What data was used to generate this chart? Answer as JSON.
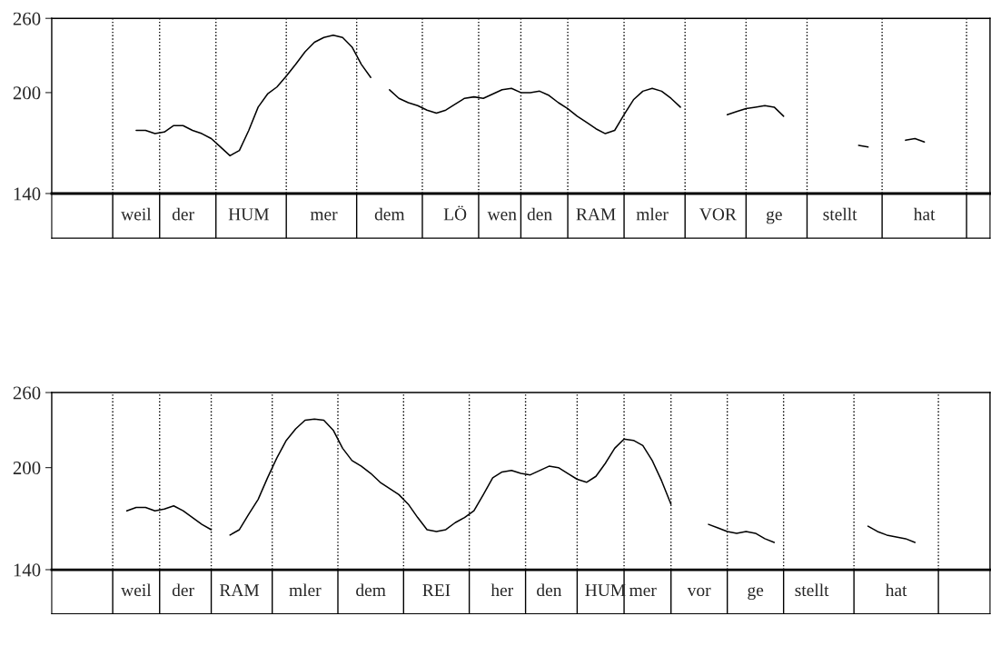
{
  "chart_data": [
    {
      "type": "line",
      "log": "y",
      "line_style": "solid",
      "ylim": [
        140,
        260
      ],
      "yticks": [
        140,
        200,
        260
      ],
      "categories": [
        null,
        null,
        null,
        null,
        null,
        null,
        null,
        null,
        null,
        "weil",
        null,
        null,
        null,
        null,
        "der",
        null,
        null,
        null,
        null,
        null,
        null,
        "HUM",
        null,
        null,
        null,
        null,
        null,
        null,
        null,
        "mer",
        null,
        null,
        null,
        null,
        null,
        null,
        "dem",
        null,
        null,
        null,
        null,
        null,
        null,
        "LÖ",
        null,
        null,
        null,
        null,
        "wen",
        null,
        null,
        null,
        "den",
        null,
        null,
        null,
        null,
        null,
        "RAM",
        null,
        null,
        null,
        null,
        null,
        "mler",
        null,
        null,
        null,
        null,
        null,
        null,
        "VOR",
        null,
        null,
        null,
        null,
        null,
        "ge",
        null,
        null,
        null,
        null,
        null,
        null,
        "stellt",
        null,
        null,
        null,
        null,
        null,
        null,
        null,
        null,
        "hat",
        null,
        null,
        null,
        null,
        null,
        null,
        null
      ],
      "series": [
        {
          "color": "#000000",
          "values": [
            null,
            null,
            null,
            null,
            null,
            null,
            null,
            null,
            null,
            175,
            175,
            173,
            174,
            178,
            178,
            175,
            173,
            170,
            165,
            160,
            163,
            175,
            190,
            199,
            204,
            212,
            221,
            231,
            239,
            243,
            245,
            243,
            235,
            221,
            211,
            null,
            202,
            196,
            193,
            191,
            188,
            186,
            188,
            192,
            196,
            197,
            196,
            199,
            202,
            203,
            200,
            200,
            201,
            198,
            193,
            189,
            184,
            180,
            176,
            173,
            175,
            185,
            195,
            201,
            203,
            201,
            196,
            190,
            null,
            null,
            null,
            null,
            185,
            187,
            189,
            190,
            191,
            190,
            184,
            null,
            null,
            null,
            null,
            null,
            null,
            null,
            166,
            165,
            null,
            null,
            null,
            169,
            170,
            168,
            null,
            null,
            null,
            null,
            null,
            null,
            null
          ]
        }
      ]
    },
    {
      "type": "line",
      "log": "y",
      "line_style": "solid",
      "ylim": [
        140,
        260
      ],
      "yticks": [
        140,
        200,
        260
      ],
      "categories": [
        null,
        null,
        null,
        null,
        null,
        null,
        null,
        null,
        null,
        "weil",
        null,
        null,
        null,
        null,
        "der",
        null,
        null,
        null,
        null,
        null,
        "RAM",
        null,
        null,
        null,
        null,
        null,
        null,
        "mler",
        null,
        null,
        null,
        null,
        null,
        null,
        "dem",
        null,
        null,
        null,
        null,
        null,
        null,
        "REI",
        null,
        null,
        null,
        null,
        null,
        null,
        "her",
        null,
        null,
        null,
        null,
        "den",
        null,
        null,
        null,
        null,
        null,
        "HUM",
        null,
        null,
        null,
        "mer",
        null,
        null,
        null,
        null,
        null,
        "vor",
        null,
        null,
        null,
        null,
        null,
        "ge",
        null,
        null,
        null,
        null,
        null,
        "stellt",
        null,
        null,
        null,
        null,
        null,
        null,
        null,
        null,
        "hat",
        null,
        null,
        null,
        null,
        null,
        null,
        null,
        null,
        null,
        null
      ],
      "series": [
        {
          "color": "#000000",
          "values": [
            null,
            null,
            null,
            null,
            null,
            null,
            null,
            null,
            172,
            174,
            174,
            172,
            173,
            175,
            172,
            168,
            164,
            161,
            null,
            158,
            161,
            170,
            179,
            193,
            207,
            220,
            229,
            236,
            237,
            236,
            228,
            214,
            205,
            201,
            196,
            190,
            186,
            182,
            176,
            168,
            161,
            160,
            161,
            165,
            168,
            172,
            182,
            193,
            197,
            198,
            196,
            195,
            198,
            201,
            200,
            196,
            192,
            190,
            194,
            203,
            214,
            221,
            220,
            216,
            205,
            191,
            176,
            null,
            null,
            null,
            164,
            162,
            160,
            159,
            160,
            159,
            156,
            154,
            null,
            null,
            null,
            null,
            null,
            null,
            null,
            null,
            null,
            163,
            160,
            158,
            157,
            156,
            154,
            null,
            null,
            null,
            null,
            null,
            null,
            null,
            null
          ]
        }
      ]
    }
  ]
}
